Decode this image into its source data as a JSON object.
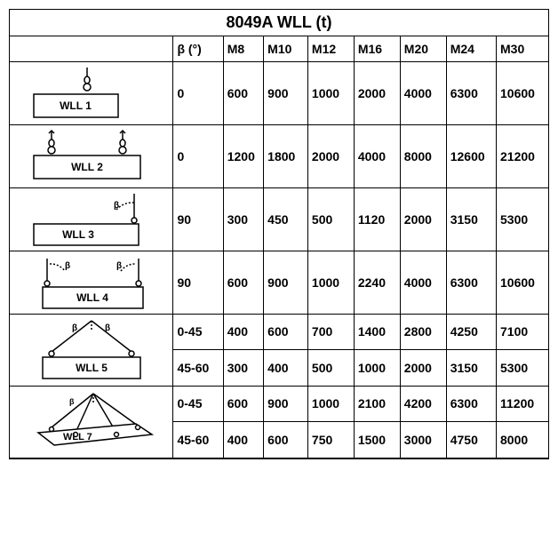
{
  "title": "8049A WLL (t)",
  "columns": [
    "β (°)",
    "M8",
    "M10",
    "M12",
    "M16",
    "M20",
    "M24",
    "M30"
  ],
  "col_widths": [
    "170px",
    "52px",
    "42px",
    "46px",
    "48px",
    "48px",
    "48px",
    "52px",
    "54px"
  ],
  "diagram_labels": [
    "WLL 1",
    "WLL 2",
    "WLL 3",
    "WLL 4",
    "WLL 5",
    "WLL 7"
  ],
  "diagram_rowspan": [
    1,
    1,
    1,
    1,
    2,
    2
  ],
  "rows": [
    {
      "d": 0,
      "beta": "0",
      "vals": [
        "600",
        "900",
        "1000",
        "2000",
        "4000",
        "6300",
        "10600"
      ],
      "h": "valcell"
    },
    {
      "d": 1,
      "beta": "0",
      "vals": [
        "1200",
        "1800",
        "2000",
        "4000",
        "8000",
        "12600",
        "21200"
      ],
      "h": "valcell"
    },
    {
      "d": 2,
      "beta": "90",
      "vals": [
        "300",
        "450",
        "500",
        "1120",
        "2000",
        "3150",
        "5300"
      ],
      "h": "valcell"
    },
    {
      "d": 3,
      "beta": "90",
      "vals": [
        "600",
        "900",
        "1000",
        "2240",
        "4000",
        "6300",
        "10600"
      ],
      "h": "valcell"
    },
    {
      "d": 4,
      "beta": "0-45",
      "vals": [
        "400",
        "600",
        "700",
        "1400",
        "2800",
        "4250",
        "7100"
      ],
      "h": "valcell2"
    },
    {
      "beta": "45-60",
      "vals": [
        "300",
        "400",
        "500",
        "1000",
        "2000",
        "3150",
        "5300"
      ],
      "h": "valcell2"
    },
    {
      "d": 5,
      "beta": "0-45",
      "vals": [
        "600",
        "900",
        "1000",
        "2100",
        "4200",
        "6300",
        "11200"
      ],
      "h": "valcell2"
    },
    {
      "beta": "45-60",
      "vals": [
        "400",
        "600",
        "750",
        "1500",
        "3000",
        "4750",
        "8000"
      ],
      "h": "valcell2"
    }
  ],
  "colors": {
    "line": "#000000",
    "bg": "#ffffff"
  }
}
